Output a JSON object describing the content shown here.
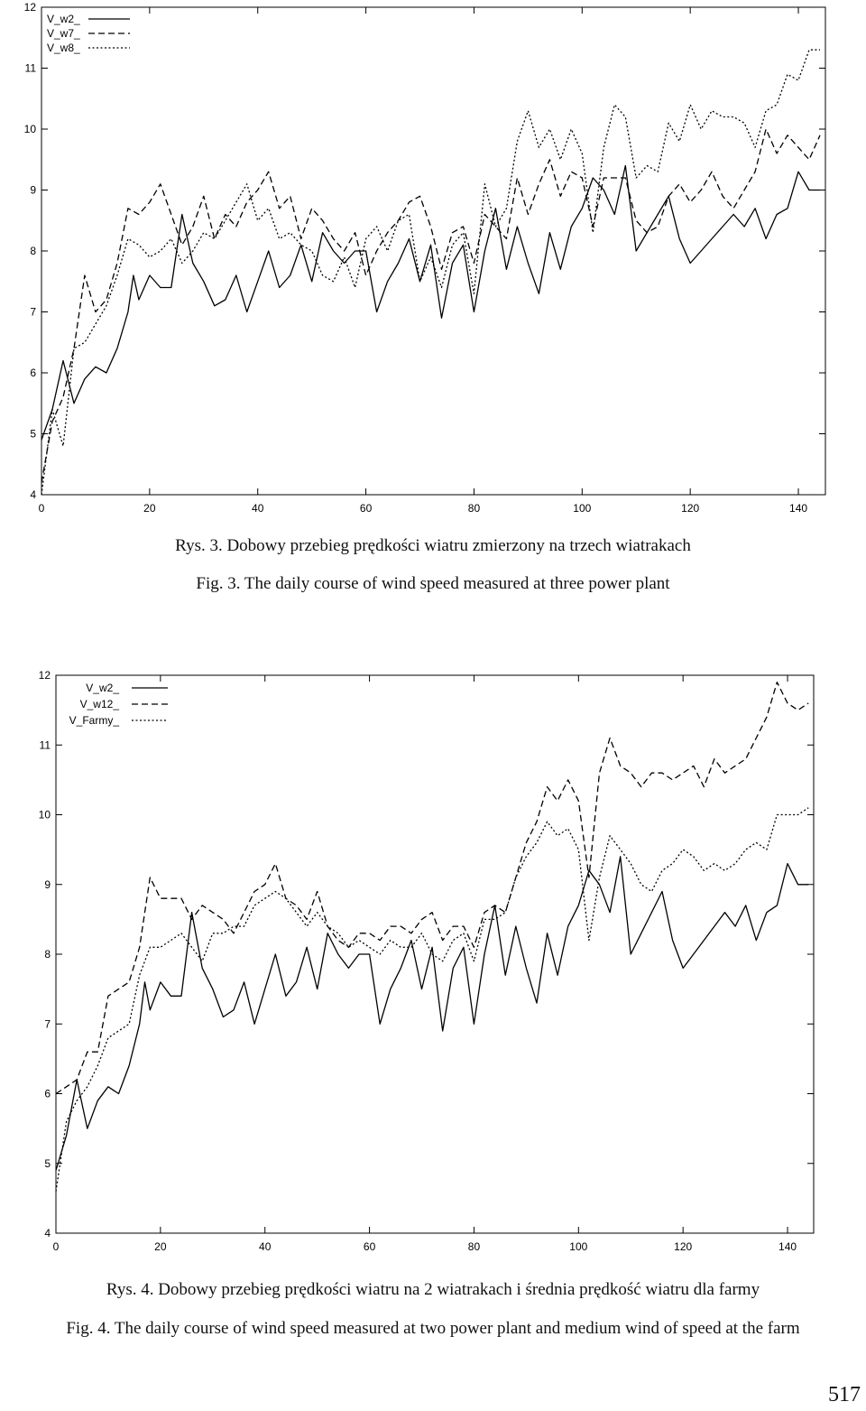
{
  "chart_data": [
    {
      "type": "line",
      "title": "",
      "xlabel": "",
      "ylabel": "",
      "xlim": [
        0,
        145
      ],
      "ylim": [
        4,
        12
      ],
      "x_ticks": [
        "0",
        "20",
        "40",
        "60",
        "80",
        "100",
        "120",
        "140"
      ],
      "y_ticks": [
        "4",
        "5",
        "6",
        "7",
        "8",
        "9",
        "10",
        "11",
        "12"
      ],
      "grid": false,
      "legend_position": "top-left",
      "series": [
        {
          "name": "V_w2_",
          "style": "solid",
          "x": [
            0,
            2,
            4,
            6,
            8,
            10,
            12,
            14,
            16,
            17,
            18,
            20,
            22,
            24,
            26,
            28,
            30,
            32,
            34,
            36,
            38,
            40,
            42,
            44,
            46,
            48,
            50,
            52,
            54,
            56,
            58,
            60,
            62,
            64,
            66,
            68,
            70,
            72,
            74,
            76,
            78,
            80,
            82,
            84,
            86,
            88,
            90,
            92,
            94,
            96,
            98,
            100,
            102,
            104,
            106,
            108,
            110,
            112,
            114,
            116,
            118,
            120,
            122,
            124,
            126,
            128,
            130,
            132,
            134,
            136,
            138,
            140,
            142,
            144
          ],
          "values": [
            4.9,
            5.4,
            6.2,
            5.5,
            5.9,
            6.1,
            6.0,
            6.4,
            7.0,
            7.6,
            7.2,
            7.6,
            7.4,
            7.4,
            8.6,
            7.8,
            7.5,
            7.1,
            7.2,
            7.6,
            7.0,
            7.5,
            8.0,
            7.4,
            7.6,
            8.1,
            7.5,
            8.3,
            8.0,
            7.8,
            8.0,
            8.0,
            7.0,
            7.5,
            7.8,
            8.2,
            7.5,
            8.1,
            6.9,
            7.8,
            8.1,
            7.0,
            8.0,
            8.7,
            7.7,
            8.4,
            7.8,
            7.3,
            8.3,
            7.7,
            8.4,
            8.7,
            9.2,
            9.0,
            8.6,
            9.4,
            8.0,
            8.3,
            8.6,
            8.9,
            8.2,
            7.8,
            8.0,
            8.2,
            8.4,
            8.6,
            8.4,
            8.7,
            8.2,
            8.6,
            8.7,
            9.3,
            9.0,
            9.0
          ]
        },
        {
          "name": "V_w7_",
          "style": "dashed",
          "x": [
            0,
            2,
            4,
            6,
            8,
            10,
            12,
            14,
            16,
            18,
            20,
            22,
            24,
            26,
            28,
            30,
            32,
            34,
            36,
            38,
            40,
            42,
            44,
            46,
            48,
            50,
            52,
            54,
            56,
            58,
            60,
            62,
            64,
            66,
            68,
            70,
            72,
            74,
            76,
            78,
            80,
            82,
            84,
            86,
            88,
            90,
            92,
            94,
            96,
            98,
            100,
            102,
            104,
            106,
            108,
            110,
            112,
            114,
            116,
            118,
            120,
            122,
            124,
            126,
            128,
            130,
            132,
            134,
            136,
            138,
            140,
            142,
            144
          ],
          "values": [
            4.2,
            5.2,
            5.6,
            6.4,
            7.6,
            7.0,
            7.2,
            7.8,
            8.7,
            8.6,
            8.8,
            9.1,
            8.6,
            8.1,
            8.4,
            8.9,
            8.2,
            8.6,
            8.4,
            8.8,
            9.0,
            9.3,
            8.7,
            8.9,
            8.2,
            8.7,
            8.5,
            8.2,
            8.0,
            8.3,
            7.6,
            8.0,
            8.3,
            8.5,
            8.8,
            8.9,
            8.4,
            7.7,
            8.3,
            8.4,
            7.8,
            8.6,
            8.4,
            8.2,
            9.2,
            8.6,
            9.1,
            9.5,
            8.9,
            9.3,
            9.2,
            8.4,
            9.2,
            9.2,
            9.2,
            8.5,
            8.3,
            8.4,
            8.9,
            9.1,
            8.8,
            9.0,
            9.3,
            8.9,
            8.7,
            9.0,
            9.3,
            10.0,
            9.6,
            9.9,
            9.7,
            9.5,
            9.9
          ]
        },
        {
          "name": "V_w8_",
          "style": "dotted",
          "x": [
            0,
            2,
            4,
            6,
            8,
            10,
            12,
            14,
            16,
            18,
            20,
            22,
            24,
            26,
            28,
            30,
            32,
            34,
            36,
            38,
            40,
            42,
            44,
            46,
            48,
            50,
            52,
            54,
            56,
            58,
            60,
            62,
            64,
            66,
            68,
            70,
            72,
            74,
            76,
            78,
            80,
            82,
            84,
            86,
            88,
            90,
            92,
            94,
            96,
            98,
            100,
            102,
            104,
            106,
            108,
            110,
            112,
            114,
            116,
            118,
            120,
            122,
            124,
            126,
            128,
            130,
            132,
            134,
            136,
            138,
            140,
            142,
            144
          ],
          "values": [
            4.0,
            5.4,
            4.8,
            6.4,
            6.5,
            6.8,
            7.1,
            7.6,
            8.2,
            8.1,
            7.9,
            8.0,
            8.2,
            7.8,
            8.0,
            8.3,
            8.2,
            8.5,
            8.8,
            9.1,
            8.5,
            8.7,
            8.2,
            8.3,
            8.1,
            8.0,
            7.6,
            7.5,
            7.9,
            7.4,
            8.2,
            8.4,
            8.0,
            8.5,
            8.6,
            7.5,
            7.9,
            7.4,
            8.1,
            8.3,
            7.3,
            9.1,
            8.4,
            8.7,
            9.8,
            10.3,
            9.7,
            10.0,
            9.5,
            10.0,
            9.6,
            8.3,
            9.7,
            10.4,
            10.2,
            9.2,
            9.4,
            9.3,
            10.1,
            9.8,
            10.4,
            10.0,
            10.3,
            10.2,
            10.2,
            10.1,
            9.7,
            10.3,
            10.4,
            10.9,
            10.8,
            11.3,
            11.3
          ]
        }
      ]
    },
    {
      "type": "line",
      "title": "",
      "xlabel": "",
      "ylabel": "",
      "xlim": [
        0,
        145
      ],
      "ylim": [
        4,
        12
      ],
      "x_ticks": [
        "0",
        "20",
        "40",
        "60",
        "80",
        "100",
        "120",
        "140"
      ],
      "y_ticks": [
        "4",
        "5",
        "6",
        "7",
        "8",
        "9",
        "10",
        "11",
        "12"
      ],
      "grid": false,
      "legend_position": "top-left",
      "series": [
        {
          "name": "V_w2_",
          "style": "solid",
          "x": [
            0,
            2,
            4,
            6,
            8,
            10,
            12,
            14,
            16,
            17,
            18,
            20,
            22,
            24,
            26,
            28,
            30,
            32,
            34,
            36,
            38,
            40,
            42,
            44,
            46,
            48,
            50,
            52,
            54,
            56,
            58,
            60,
            62,
            64,
            66,
            68,
            70,
            72,
            74,
            76,
            78,
            80,
            82,
            84,
            86,
            88,
            90,
            92,
            94,
            96,
            98,
            100,
            102,
            104,
            106,
            108,
            110,
            112,
            114,
            116,
            118,
            120,
            122,
            124,
            126,
            128,
            130,
            132,
            134,
            136,
            138,
            140,
            142,
            144
          ],
          "values": [
            4.9,
            5.4,
            6.2,
            5.5,
            5.9,
            6.1,
            6.0,
            6.4,
            7.0,
            7.6,
            7.2,
            7.6,
            7.4,
            7.4,
            8.6,
            7.8,
            7.5,
            7.1,
            7.2,
            7.6,
            7.0,
            7.5,
            8.0,
            7.4,
            7.6,
            8.1,
            7.5,
            8.3,
            8.0,
            7.8,
            8.0,
            8.0,
            7.0,
            7.5,
            7.8,
            8.2,
            7.5,
            8.1,
            6.9,
            7.8,
            8.1,
            7.0,
            8.0,
            8.7,
            7.7,
            8.4,
            7.8,
            7.3,
            8.3,
            7.7,
            8.4,
            8.7,
            9.2,
            9.0,
            8.6,
            9.4,
            8.0,
            8.3,
            8.6,
            8.9,
            8.2,
            7.8,
            8.0,
            8.2,
            8.4,
            8.6,
            8.4,
            8.7,
            8.2,
            8.6,
            8.7,
            9.3,
            9.0,
            9.0
          ]
        },
        {
          "name": "V_w12_",
          "style": "dashed",
          "x": [
            0,
            2,
            4,
            6,
            8,
            10,
            12,
            14,
            16,
            18,
            20,
            22,
            24,
            26,
            28,
            30,
            32,
            34,
            36,
            38,
            40,
            42,
            44,
            46,
            48,
            50,
            52,
            54,
            56,
            58,
            60,
            62,
            64,
            66,
            68,
            70,
            72,
            74,
            76,
            78,
            80,
            82,
            84,
            86,
            88,
            90,
            92,
            94,
            96,
            98,
            100,
            102,
            104,
            106,
            108,
            110,
            112,
            114,
            116,
            118,
            120,
            122,
            124,
            126,
            128,
            130,
            132,
            134,
            136,
            138,
            140,
            142,
            144
          ],
          "values": [
            6.0,
            6.1,
            6.2,
            6.6,
            6.6,
            7.4,
            7.5,
            7.6,
            8.1,
            9.1,
            8.8,
            8.8,
            8.8,
            8.5,
            8.7,
            8.6,
            8.5,
            8.3,
            8.6,
            8.9,
            9.0,
            9.3,
            8.8,
            8.7,
            8.5,
            8.9,
            8.4,
            8.2,
            8.1,
            8.3,
            8.3,
            8.2,
            8.4,
            8.4,
            8.3,
            8.5,
            8.6,
            8.2,
            8.4,
            8.4,
            8.1,
            8.6,
            8.7,
            8.6,
            9.1,
            9.6,
            9.9,
            10.4,
            10.2,
            10.5,
            10.2,
            9.1,
            10.6,
            11.1,
            10.7,
            10.6,
            10.4,
            10.6,
            10.6,
            10.5,
            10.6,
            10.7,
            10.4,
            10.8,
            10.6,
            10.7,
            10.8,
            11.1,
            11.4,
            11.9,
            11.6,
            11.5,
            11.6
          ]
        },
        {
          "name": "V_Farmy_",
          "style": "dotted",
          "x": [
            0,
            2,
            4,
            6,
            8,
            10,
            12,
            14,
            16,
            18,
            20,
            22,
            24,
            26,
            28,
            30,
            32,
            34,
            36,
            38,
            40,
            42,
            44,
            46,
            48,
            50,
            52,
            54,
            56,
            58,
            60,
            62,
            64,
            66,
            68,
            70,
            72,
            74,
            76,
            78,
            80,
            82,
            84,
            86,
            88,
            90,
            92,
            94,
            96,
            98,
            100,
            102,
            104,
            106,
            108,
            110,
            112,
            114,
            116,
            118,
            120,
            122,
            124,
            126,
            128,
            130,
            132,
            134,
            136,
            138,
            140,
            142,
            144
          ],
          "values": [
            4.6,
            5.6,
            5.9,
            6.1,
            6.4,
            6.8,
            6.9,
            7.0,
            7.7,
            8.1,
            8.1,
            8.2,
            8.3,
            8.1,
            7.9,
            8.3,
            8.3,
            8.4,
            8.4,
            8.7,
            8.8,
            8.9,
            8.8,
            8.6,
            8.4,
            8.6,
            8.4,
            8.3,
            8.1,
            8.2,
            8.1,
            8.0,
            8.2,
            8.1,
            8.1,
            8.3,
            8.0,
            7.9,
            8.2,
            8.3,
            7.9,
            8.5,
            8.5,
            8.6,
            9.1,
            9.4,
            9.6,
            9.9,
            9.7,
            9.8,
            9.5,
            8.2,
            9.1,
            9.7,
            9.5,
            9.3,
            9.0,
            8.9,
            9.2,
            9.3,
            9.5,
            9.4,
            9.2,
            9.3,
            9.2,
            9.3,
            9.5,
            9.6,
            9.5,
            10.0,
            10.0,
            10.0,
            10.1
          ]
        }
      ]
    }
  ],
  "captions": {
    "rys3": "Rys. 3. Dobowy przebieg prędkości wiatru zmierzony na trzech wiatrakach",
    "fig3": "Fig. 3. The daily course of wind speed measured at three power plant",
    "rys4": "Rys. 4. Dobowy przebieg prędkości wiatru na 2 wiatrakach i średnia prędkość wiatru dla farmy",
    "fig4": "Fig. 4. The daily course of wind speed measured at two power plant and medium wind of speed at the farm"
  },
  "page_number": "517"
}
